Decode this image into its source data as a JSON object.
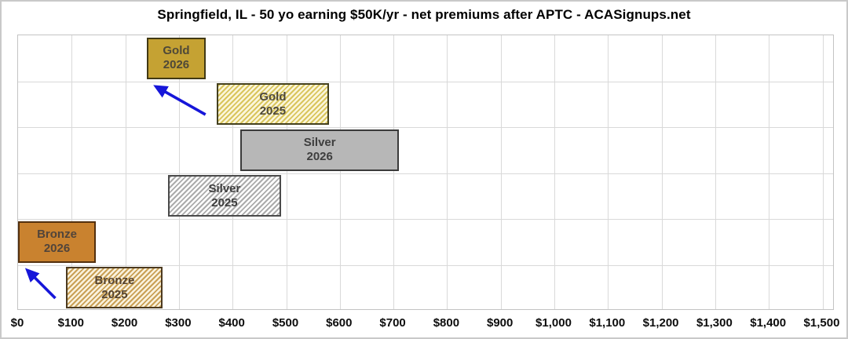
{
  "chart_data": {
    "type": "bar",
    "variant": "horizontal-floating-range-bars",
    "title": "Springfield, IL - 50 yo earning $50K/yr - net premiums after APTC - ACASignups.net",
    "grid": true,
    "legend": "none",
    "x_axis": {
      "min": 0,
      "max": 1500,
      "tick_step": 100,
      "tick_labels": [
        "$0",
        "$100",
        "$200",
        "$300",
        "$400",
        "$500",
        "$600",
        "$700",
        "$800",
        "$900",
        "$1,000",
        "$1,100",
        "$1,200",
        "$1,300",
        "$1,400",
        "$1,500"
      ]
    },
    "bars": [
      {
        "label": "Gold 2026",
        "name": "Gold",
        "year": "2026",
        "row": 0,
        "start": 240,
        "end": 350,
        "pattern": "solid",
        "fill": "#C5A233",
        "stripe": null,
        "border": "#413914",
        "text_color": "#4E4838"
      },
      {
        "label": "Gold 2025",
        "name": "Gold",
        "year": "2025",
        "row": 1,
        "start": 370,
        "end": 580,
        "pattern": "hatched",
        "fill": "#FBF6DC",
        "stripe": "#D9C55C",
        "border": "#44401E",
        "text_color": "#4E4838"
      },
      {
        "label": "Silver 2026",
        "name": "Silver",
        "year": "2026",
        "row": 2,
        "start": 415,
        "end": 710,
        "pattern": "solid",
        "fill": "#B7B7B7",
        "stripe": null,
        "border": "#3A3A3A",
        "text_color": "#3E3E3E"
      },
      {
        "label": "Silver 2025",
        "name": "Silver",
        "year": "2025",
        "row": 3,
        "start": 280,
        "end": 490,
        "pattern": "hatched",
        "fill": "#FEFEFE",
        "stripe": "#ABABAB",
        "border": "#4A4A4A",
        "text_color": "#3E3E3E"
      },
      {
        "label": "Bronze 2026",
        "name": "Bronze",
        "year": "2026",
        "row": 4,
        "start": 0,
        "end": 145,
        "pattern": "solid",
        "fill": "#C9822F",
        "stripe": null,
        "border": "#53300E",
        "text_color": "#51443A"
      },
      {
        "label": "Bronze 2025",
        "name": "Bronze",
        "year": "2025",
        "row": 5,
        "start": 90,
        "end": 270,
        "pattern": "hatched",
        "fill": "#FAF2DE",
        "stripe": "#C9A055",
        "border": "#4C3A20",
        "text_color": "#55432F"
      }
    ],
    "arrows": [
      {
        "from": "Gold 2025",
        "to": "Gold 2026",
        "color": "#1616D9"
      },
      {
        "from": "Bronze 2025",
        "to": "Bronze 2026",
        "color": "#1616D9"
      }
    ]
  }
}
